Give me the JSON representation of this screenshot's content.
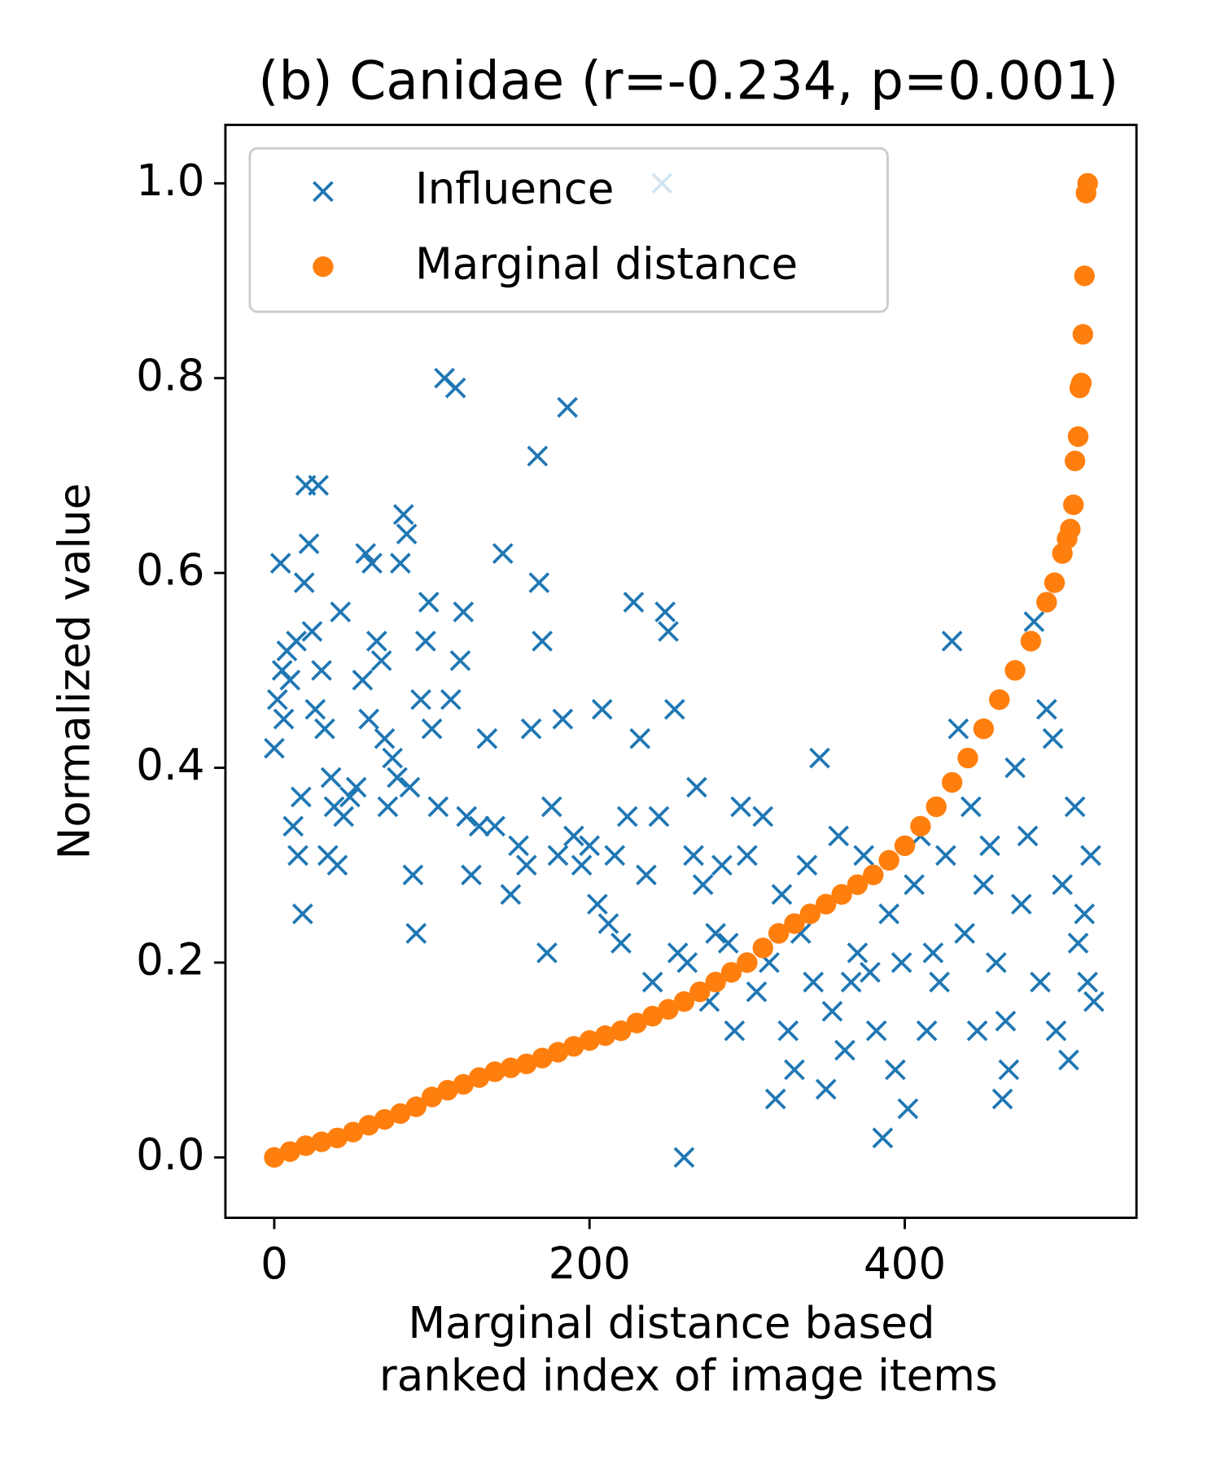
{
  "chart_data": {
    "type": "scatter",
    "title": "(b) Canidae (r=-0.234, p=0.001)",
    "xlabel": [
      "Marginal distance based",
      "ranked index of image items"
    ],
    "ylabel": "Normalized value",
    "xlim": [
      -31,
      547
    ],
    "ylim": [
      -0.062,
      1.06
    ],
    "xticks": [
      0,
      200,
      400
    ],
    "yticks": [
      {
        "value": 0,
        "label": "0.0"
      },
      {
        "value": 0.2,
        "label": "0.2"
      },
      {
        "value": 0.4,
        "label": "0.4"
      },
      {
        "value": 0.6,
        "label": "0.6"
      },
      {
        "value": 0.8,
        "label": "0.8"
      },
      {
        "value": 1.0,
        "label": "1.0"
      }
    ],
    "legend": "upper left",
    "series": [
      {
        "name": "Influence",
        "color": "#1f77b4",
        "marker": "x",
        "x": [
          0,
          2,
          4,
          5,
          6,
          8,
          10,
          12,
          14,
          15,
          17,
          18,
          19,
          20,
          22,
          24,
          26,
          28,
          30,
          32,
          34,
          36,
          38,
          40,
          42,
          44,
          48,
          52,
          56,
          58,
          60,
          62,
          65,
          68,
          70,
          72,
          75,
          78,
          80,
          82,
          84,
          86,
          88,
          90,
          93,
          96,
          98,
          100,
          104,
          108,
          112,
          115,
          118,
          120,
          122,
          125,
          130,
          135,
          140,
          145,
          150,
          155,
          160,
          163,
          167,
          168,
          170,
          173,
          176,
          180,
          183,
          186,
          190,
          195,
          200,
          205,
          208,
          212,
          216,
          220,
          224,
          228,
          232,
          236,
          240,
          244,
          246,
          248,
          250,
          254,
          256,
          260,
          262,
          266,
          268,
          272,
          276,
          280,
          284,
          288,
          292,
          296,
          300,
          306,
          310,
          314,
          318,
          322,
          326,
          330,
          334,
          338,
          342,
          346,
          350,
          354,
          358,
          362,
          366,
          370,
          374,
          378,
          382,
          386,
          390,
          394,
          398,
          402,
          406,
          410,
          414,
          418,
          422,
          426,
          430,
          434,
          438,
          442,
          446,
          450,
          454,
          458,
          462,
          464,
          466,
          470,
          474,
          478,
          482,
          486,
          490,
          494,
          496,
          500,
          504,
          508,
          510,
          514,
          516,
          518,
          520
        ],
        "values": [
          0.42,
          0.47,
          0.61,
          0.5,
          0.45,
          0.52,
          0.49,
          0.34,
          0.53,
          0.31,
          0.37,
          0.25,
          0.59,
          0.69,
          0.63,
          0.54,
          0.46,
          0.69,
          0.5,
          0.44,
          0.31,
          0.39,
          0.36,
          0.3,
          0.56,
          0.35,
          0.37,
          0.38,
          0.49,
          0.62,
          0.45,
          0.61,
          0.53,
          0.51,
          0.43,
          0.36,
          0.41,
          0.39,
          0.61,
          0.66,
          0.64,
          0.38,
          0.29,
          0.23,
          0.47,
          0.53,
          0.57,
          0.44,
          0.36,
          0.8,
          0.47,
          0.79,
          0.51,
          0.56,
          0.35,
          0.29,
          0.34,
          0.43,
          0.34,
          0.62,
          0.27,
          0.32,
          0.3,
          0.44,
          0.72,
          0.59,
          0.53,
          0.21,
          0.36,
          0.31,
          0.45,
          0.77,
          0.33,
          0.3,
          0.32,
          0.26,
          0.46,
          0.24,
          0.31,
          0.22,
          0.35,
          0.57,
          0.43,
          0.29,
          0.18,
          0.35,
          1.0,
          0.56,
          0.54,
          0.46,
          0.21,
          0,
          0.2,
          0.31,
          0.38,
          0.28,
          0.16,
          0.23,
          0.3,
          0.22,
          0.13,
          0.36,
          0.31,
          0.17,
          0.35,
          0.2,
          0.06,
          0.27,
          0.13,
          0.09,
          0.23,
          0.3,
          0.18,
          0.41,
          0.07,
          0.15,
          0.33,
          0.11,
          0.18,
          0.21,
          0.31,
          0.19,
          0.13,
          0.02,
          0.25,
          0.09,
          0.2,
          0.05,
          0.28,
          0.33,
          0.13,
          0.21,
          0.18,
          0.31,
          0.53,
          0.44,
          0.23,
          0.36,
          0.13,
          0.28,
          0.32,
          0.2,
          0.06,
          0.14,
          0.09,
          0.4,
          0.26,
          0.33,
          0.55,
          0.18,
          0.46,
          0.43,
          0.13,
          0.28,
          0.1,
          0.36,
          0.22,
          0.25,
          0.18,
          0.31,
          0.16
        ]
      },
      {
        "name": "Marginal distance",
        "color": "#ff7f0e",
        "marker": "o",
        "x": [
          0,
          10,
          20,
          30,
          40,
          50,
          60,
          70,
          80,
          90,
          100,
          110,
          120,
          130,
          140,
          150,
          160,
          170,
          180,
          190,
          200,
          210,
          220,
          230,
          240,
          250,
          260,
          270,
          280,
          290,
          300,
          310,
          320,
          330,
          340,
          350,
          360,
          370,
          380,
          390,
          400,
          410,
          420,
          430,
          440,
          450,
          460,
          470,
          480,
          490,
          495,
          500,
          503,
          505,
          507,
          508,
          510,
          511,
          512,
          513,
          514,
          515,
          516
        ],
        "values": [
          0,
          0.006,
          0.012,
          0.016,
          0.02,
          0.026,
          0.033,
          0.039,
          0.045,
          0.052,
          0.062,
          0.069,
          0.075,
          0.082,
          0.088,
          0.092,
          0.096,
          0.102,
          0.108,
          0.114,
          0.12,
          0.125,
          0.13,
          0.138,
          0.145,
          0.152,
          0.16,
          0.17,
          0.18,
          0.19,
          0.2,
          0.215,
          0.23,
          0.24,
          0.25,
          0.26,
          0.27,
          0.28,
          0.29,
          0.305,
          0.32,
          0.34,
          0.36,
          0.385,
          0.41,
          0.44,
          0.47,
          0.5,
          0.53,
          0.57,
          0.59,
          0.62,
          0.635,
          0.645,
          0.67,
          0.715,
          0.74,
          0.79,
          0.795,
          0.845,
          0.905,
          0.99,
          1.0
        ]
      }
    ]
  }
}
